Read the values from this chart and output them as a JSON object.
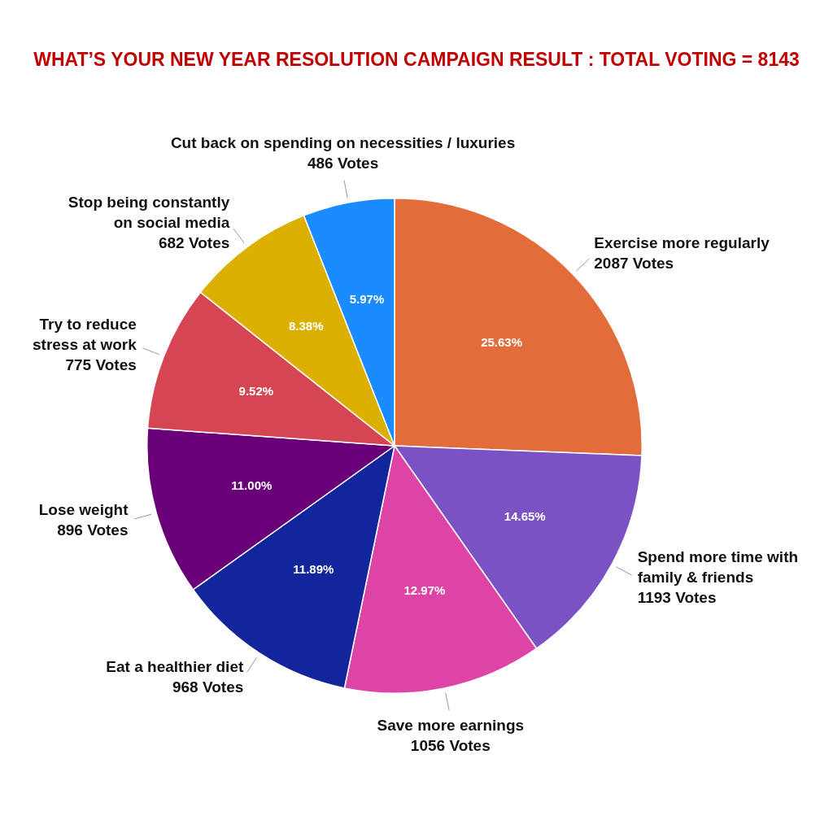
{
  "chart_data": {
    "type": "pie",
    "title": "WHAT’S YOUR NEW YEAR RESOLUTION CAMPAIGN RESULT : TOTAL VOTING = 8143",
    "categories": [
      "Exercise more regularly\n2087 Votes",
      "Spend more time with\nfamily & friends\n1193 Votes",
      "Save more earnings\n1056 Votes",
      "Eat a healthier diet\n968 Votes",
      "Lose weight\n896 Votes",
      "Try to reduce\nstress at work\n775 Votes",
      "Stop being constantly\non social media\n682 Votes",
      "Cut back on spending on necessities / luxuries\n486 Votes"
    ],
    "values": [
      25.63,
      14.65,
      12.97,
      11.89,
      11.0,
      9.52,
      8.38,
      5.97
    ],
    "value_labels": [
      "25.63%",
      "14.65%",
      "12.97%",
      "11.89%",
      "11.00%",
      "9.52%",
      "8.38%",
      "5.97%"
    ],
    "colors": [
      "#e36c3b",
      "#7b52c4",
      "#dd44a6",
      "#13259b",
      "#6a0077",
      "#d64652",
      "#dbb000",
      "#1a8cff"
    ],
    "legend": false
  }
}
